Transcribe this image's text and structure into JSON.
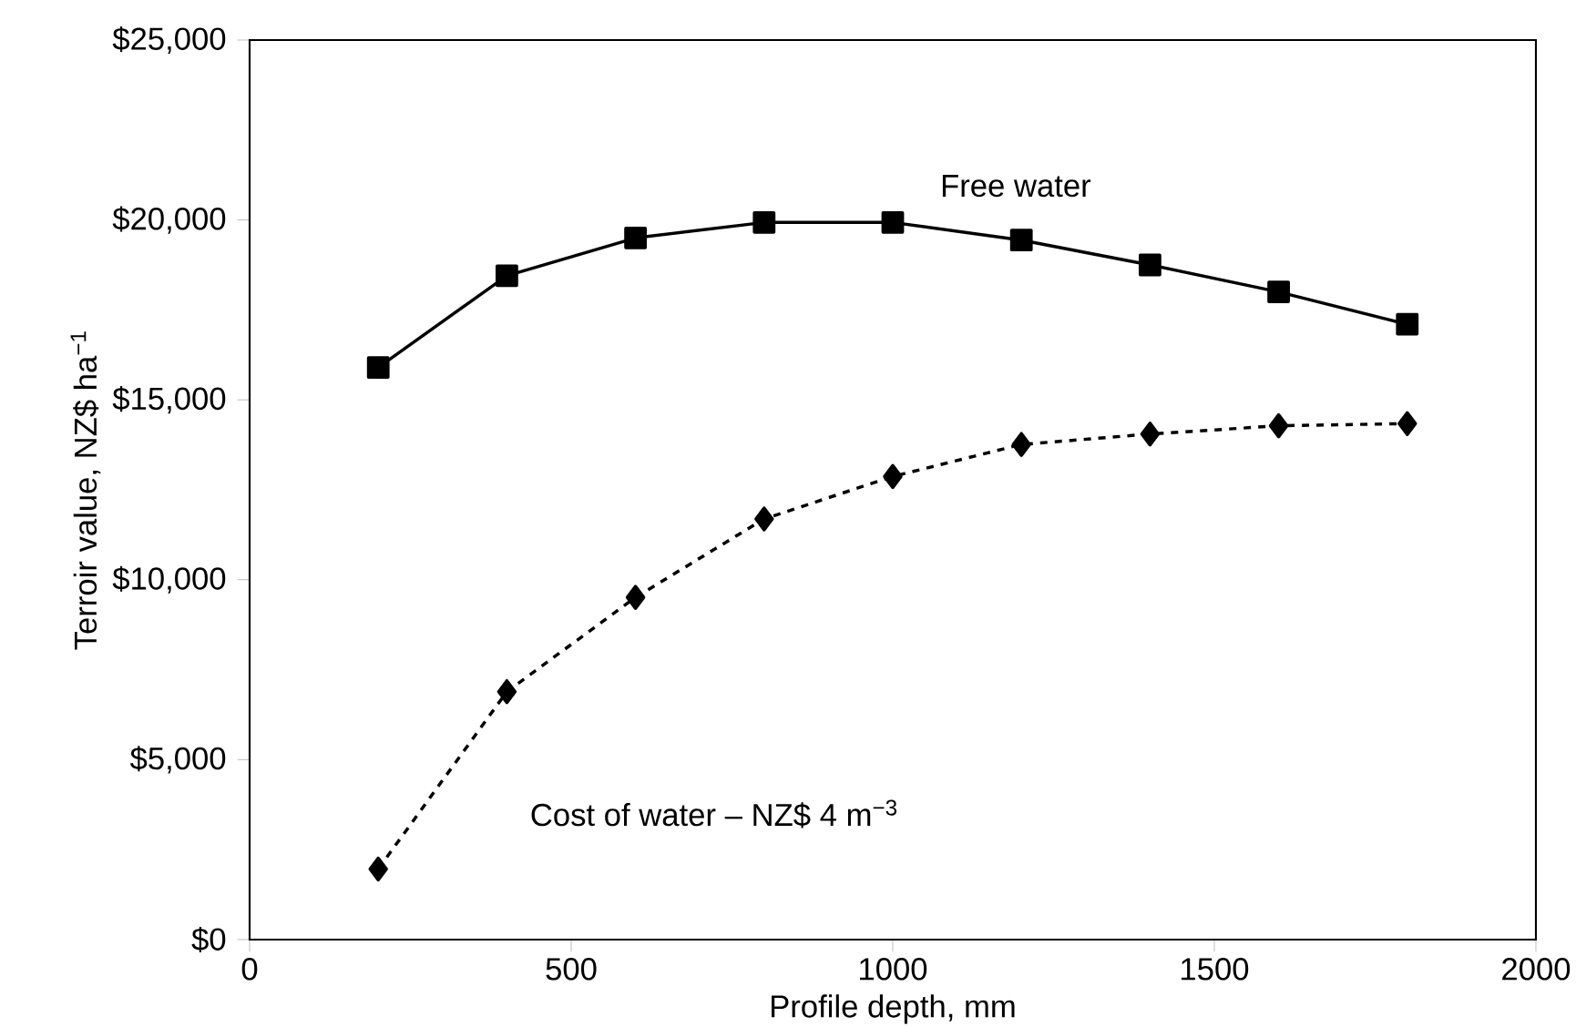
{
  "chart_data": {
    "type": "line",
    "xlabel": "Profile depth, mm",
    "ylabel": "Terroir value, NZ$ ha$^{−1}$",
    "x": [
      200,
      400,
      600,
      800,
      1000,
      1200,
      1400,
      1600,
      1800
    ],
    "series": [
      {
        "name": "Free water",
        "color": "#000000",
        "marker": "square",
        "line_style": "solid",
        "values": [
          15900,
          18450,
          19500,
          19930,
          19930,
          19440,
          18750,
          18000,
          17100
        ]
      },
      {
        "name": "Cost of water – NZ$ 4 m$^{−3}$",
        "color": "#000000",
        "marker": "diamond",
        "line_style": "dotted",
        "values": [
          1960,
          6890,
          9510,
          11690,
          12870,
          13760,
          14050,
          14280,
          14340
        ]
      }
    ],
    "xlim": [
      0,
      2000
    ],
    "xticks": [
      0,
      500,
      1000,
      1500,
      2000
    ],
    "ylim": [
      0,
      25000
    ],
    "yticks": [
      {
        "value": 0,
        "label": "$0"
      },
      {
        "value": 5000,
        "label": "$5,000"
      },
      {
        "value": 10000,
        "label": "$10,000"
      },
      {
        "value": 15000,
        "label": "$15,000"
      },
      {
        "value": 20000,
        "label": "$20,000"
      },
      {
        "value": 25000,
        "label": "$25,000"
      }
    ],
    "grid": false,
    "legend": false
  }
}
